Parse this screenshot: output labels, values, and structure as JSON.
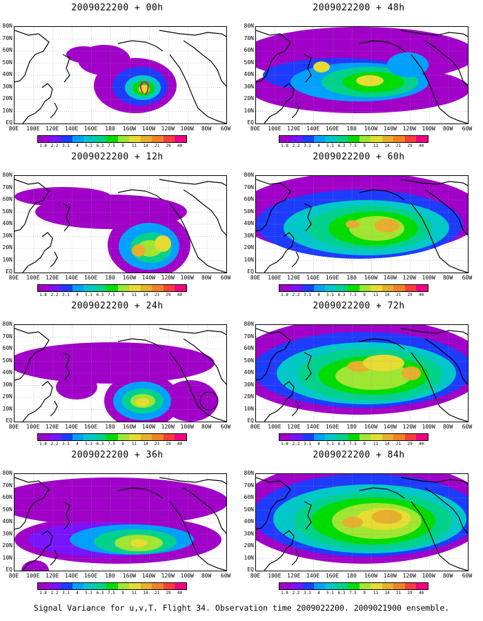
{
  "caption": "Signal Variance for u,v,T. Flight 34. Observation time 2009022200. 2009021900 ensemble.",
  "lat_labels": [
    "80N",
    "70N",
    "60N",
    "50N",
    "40N",
    "30N",
    "20N",
    "10N",
    "EQ"
  ],
  "lon_labels": [
    "80E",
    "100E",
    "120E",
    "140E",
    "160E",
    "180",
    "160W",
    "140W",
    "120W",
    "100W",
    "80W",
    "60W"
  ],
  "colorbar": {
    "labels": [
      "1.8",
      "2.2",
      "3.1",
      "4",
      "5.1",
      "6.3",
      "7.5",
      "9",
      "11",
      "14",
      "21",
      "29",
      "40"
    ],
    "colors": [
      "#a000c8",
      "#7814ff",
      "#1e3cff",
      "#00a0ff",
      "#00c8c8",
      "#00d28c",
      "#00dc00",
      "#a0e632",
      "#e6dc32",
      "#e6af2d",
      "#f08228",
      "#fa3c3c",
      "#f00082"
    ]
  },
  "panels": [
    {
      "title": "2009022200 + 00h",
      "lead_hours": 0
    },
    {
      "title": "2009022200 + 48h",
      "lead_hours": 48
    },
    {
      "title": "2009022200 + 12h",
      "lead_hours": 12
    },
    {
      "title": "2009022200 + 60h",
      "lead_hours": 60
    },
    {
      "title": "2009022200 + 24h",
      "lead_hours": 24
    },
    {
      "title": "2009022200 + 72h",
      "lead_hours": 72
    },
    {
      "title": "2009022200 + 36h",
      "lead_hours": 36
    },
    {
      "title": "2009022200 + 84h",
      "lead_hours": 84
    }
  ]
}
